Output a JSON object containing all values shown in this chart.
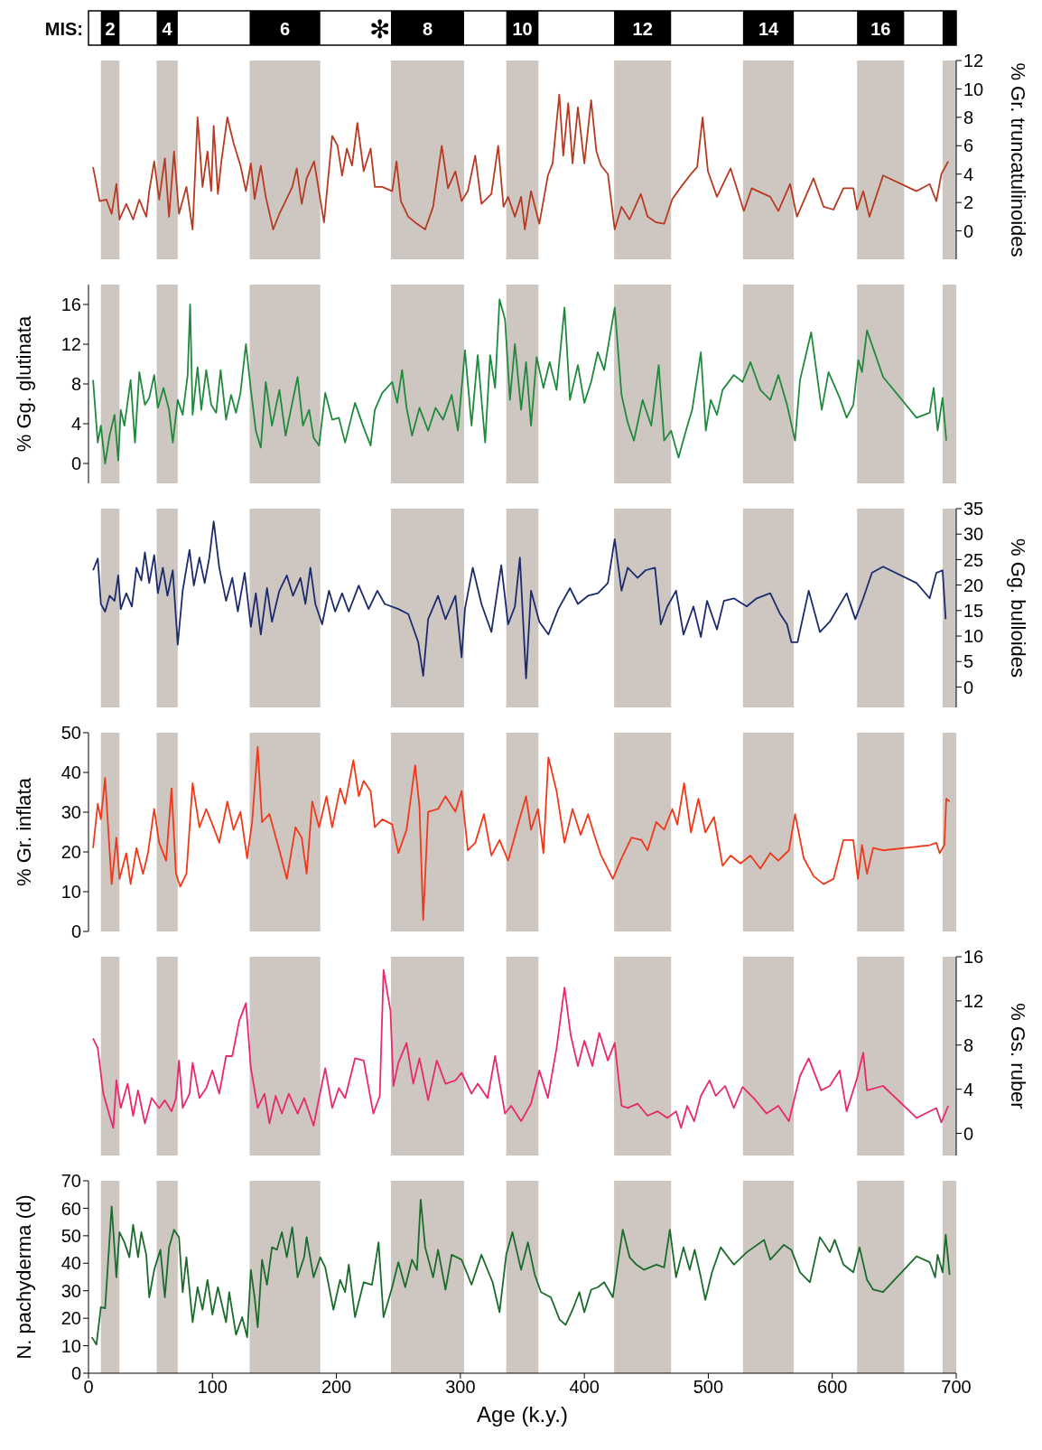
{
  "chart_data": [
    {
      "type": "line",
      "ylabel": "% Gr. truncatulinoides",
      "xlim": [
        0,
        700
      ],
      "ylim": [
        -2,
        12
      ],
      "yticks": [
        0,
        2,
        4,
        6,
        8,
        10,
        12
      ],
      "tick_labels": "y",
      "annotations": [
        "MIS:",
        "✻"
      ],
      "bands": [
        {
          "axis": "x",
          "from": 10,
          "to": 25,
          "label": "2",
          "color": "#cec7c1"
        },
        {
          "axis": "x",
          "from": 55,
          "to": 72,
          "label": "4",
          "color": "#cec7c1"
        },
        {
          "axis": "x",
          "from": 130,
          "to": 187,
          "label": "6",
          "color": "#cec7c1"
        },
        {
          "axis": "x",
          "from": 244,
          "to": 303,
          "label": "8",
          "color": "#cec7c1"
        },
        {
          "axis": "x",
          "from": 337,
          "to": 363,
          "label": "10",
          "color": "#cec7c1"
        },
        {
          "axis": "x",
          "from": 424,
          "to": 470,
          "label": "12",
          "color": "#cec7c1"
        },
        {
          "axis": "x",
          "from": 528,
          "to": 569,
          "label": "14",
          "color": "#cec7c1"
        },
        {
          "axis": "x",
          "from": 620,
          "to": 658,
          "label": "16",
          "color": "#cec7c1"
        },
        {
          "axis": "x",
          "from": 689,
          "to": 700,
          "label": null,
          "color": "#cec7c1"
        }
      ],
      "x": [
        3.7,
        9,
        14.5,
        18.7,
        22.5,
        25,
        30.5,
        36,
        41,
        46.6,
        49,
        53,
        57,
        61.6,
        65,
        69,
        73,
        79,
        84,
        88,
        92,
        96,
        99,
        101,
        104.4,
        107,
        112,
        117,
        122.6,
        127,
        131,
        134,
        139,
        143,
        149,
        154,
        159,
        164.4,
        168,
        172,
        176,
        182,
        190,
        196.6,
        200.9,
        204.6,
        208.4,
        212.6,
        216.9,
        222,
        227.6,
        231,
        237,
        245,
        248.5,
        252,
        258,
        263.5,
        271.6,
        278,
        285,
        290,
        296,
        301,
        306,
        312,
        317,
        325,
        330.5,
        334.8,
        338.5,
        344,
        349,
        352,
        357,
        363.7,
        370.6,
        374.4,
        379.8,
        383,
        387,
        390.5,
        394.8,
        400,
        405.5,
        409.7,
        413.5,
        419,
        424.5,
        430,
        436.5,
        445.6,
        451,
        458,
        464.4,
        471,
        478,
        486,
        491,
        495.4,
        499.7,
        507,
        518,
        528.7,
        535,
        550,
        556.5,
        566,
        571.5,
        584.9,
        593,
        601,
        609,
        617,
        620,
        625,
        630,
        641,
        668,
        678.6,
        684,
        688,
        693.6
      ],
      "series": [
        {
          "color": "#b83a22",
          "values": [
            4.5,
            2.1,
            2.2,
            1.2,
            3.3,
            0.8,
            1.9,
            0.8,
            2.2,
            1.0,
            2.8,
            4.9,
            2.2,
            5.1,
            1.0,
            5.6,
            1.2,
            3.1,
            0.1,
            8.0,
            3.1,
            5.6,
            2.8,
            7.4,
            2.6,
            4.75,
            8.0,
            6.2,
            4.6,
            2.8,
            4.75,
            2.25,
            4.6,
            2.4,
            0.1,
            1.2,
            2.1,
            3.1,
            4.4,
            1.9,
            3.7,
            4.9,
            0.6,
            6.7,
            6.0,
            3.9,
            5.8,
            4.6,
            7.6,
            4.2,
            5.8,
            3.1,
            3.1,
            2.8,
            4.9,
            2.1,
            1.0,
            0.6,
            0.1,
            1.7,
            6.0,
            3.0,
            4.2,
            2.1,
            2.8,
            5.3,
            1.9,
            2.6,
            6.0,
            1.7,
            2.4,
            1.0,
            2.4,
            0.1,
            2.8,
            0.5,
            3.9,
            4.75,
            9.6,
            5.3,
            9.0,
            4.75,
            8.7,
            4.75,
            9.2,
            5.6,
            4.6,
            4.0,
            0.1,
            1.7,
            0.8,
            2.6,
            1.0,
            0.6,
            0.5,
            2.25,
            3.1,
            4.0,
            4.5,
            8.0,
            4.2,
            2.4,
            4.4,
            1.4,
            3.0,
            2.4,
            1.4,
            3.3,
            1.0,
            3.7,
            1.7,
            1.5,
            3.0,
            3.0,
            1.5,
            2.8,
            1.0,
            3.9,
            2.8,
            3.3,
            2.1,
            4.0,
            4.9
          ]
        }
      ]
    },
    {
      "type": "line",
      "ylabel": "% Gg. glutinata",
      "xlim": [
        0,
        700
      ],
      "ylim": [
        -2,
        18
      ],
      "yticks": [
        0,
        4,
        8,
        12,
        16
      ],
      "tick_labels": "y",
      "bands": [
        {
          "axis": "x",
          "from": 10,
          "to": 25,
          "color": "#cec7c1"
        },
        {
          "axis": "x",
          "from": 55,
          "to": 72,
          "color": "#cec7c1"
        },
        {
          "axis": "x",
          "from": 130,
          "to": 187,
          "color": "#cec7c1"
        },
        {
          "axis": "x",
          "from": 244,
          "to": 303,
          "color": "#cec7c1"
        },
        {
          "axis": "x",
          "from": 337,
          "to": 363,
          "color": "#cec7c1"
        },
        {
          "axis": "x",
          "from": 424,
          "to": 470,
          "color": "#cec7c1"
        },
        {
          "axis": "x",
          "from": 528,
          "to": 569,
          "color": "#cec7c1"
        },
        {
          "axis": "x",
          "from": 620,
          "to": 658,
          "color": "#cec7c1"
        },
        {
          "axis": "x",
          "from": 689,
          "to": 700,
          "color": "#cec7c1"
        }
      ],
      "x": [
        3.7,
        7.5,
        10,
        13.4,
        17,
        21,
        24,
        26,
        29,
        34,
        37.5,
        41,
        45.5,
        49,
        53,
        56,
        60.5,
        65,
        68,
        72,
        76,
        80,
        82,
        84,
        88,
        91,
        95,
        99,
        103,
        106.6,
        111,
        115,
        119,
        122.6,
        127,
        131,
        135,
        139,
        143,
        148,
        154,
        159,
        164.4,
        168.7,
        173,
        178,
        181.6,
        186,
        191,
        196.6,
        202,
        207,
        215,
        222,
        227.6,
        231,
        237,
        245,
        249,
        253,
        256.6,
        261,
        267,
        274,
        280,
        286,
        293,
        298,
        303.7,
        309,
        314,
        320,
        324,
        328,
        331.6,
        336,
        340,
        344,
        349,
        353,
        357,
        361.5,
        367,
        372,
        377.6,
        384,
        388.4,
        394.8,
        400,
        405.5,
        410.8,
        416,
        424.5,
        430,
        435,
        440,
        447,
        454,
        460,
        464.4,
        470,
        476,
        481.5,
        487,
        494,
        498,
        502,
        507,
        511.5,
        520.6,
        527.6,
        534,
        542,
        550,
        556.5,
        563.5,
        570,
        574,
        583,
        591.5,
        597,
        606,
        611.6,
        617,
        621,
        624,
        628,
        641,
        668,
        678.6,
        681.8,
        685,
        689,
        692
      ],
      "series": [
        {
          "color": "#1f8a3c",
          "values": [
            8.4,
            2.1,
            3.8,
            0,
            2.8,
            4.9,
            0.3,
            5.4,
            3.8,
            8.4,
            2.1,
            9.2,
            5.9,
            6.6,
            8.9,
            5.6,
            7.6,
            5.4,
            2.1,
            6.4,
            4.9,
            8.9,
            16.0,
            4.9,
            9.7,
            5.4,
            9.4,
            5.9,
            5.1,
            9.4,
            4.4,
            6.9,
            5.1,
            7.1,
            12.0,
            7.4,
            3.3,
            1.6,
            8.2,
            3.8,
            7.4,
            2.8,
            6.1,
            8.7,
            3.8,
            5.4,
            2.6,
            1.8,
            7.1,
            4.4,
            4.6,
            2.1,
            6.1,
            3.6,
            1.8,
            5.4,
            7.1,
            8.2,
            6.1,
            9.4,
            5.6,
            2.8,
            5.6,
            3.3,
            5.6,
            4.4,
            6.9,
            3.3,
            11.4,
            3.8,
            10.9,
            2.1,
            10.9,
            7.6,
            16.5,
            14.5,
            6.4,
            12.0,
            5.4,
            10.2,
            3.8,
            10.7,
            7.6,
            10.2,
            7.4,
            15.7,
            6.4,
            9.9,
            6.1,
            8.2,
            11.2,
            9.4,
            15.7,
            6.9,
            4.1,
            2.3,
            6.4,
            3.8,
            9.9,
            2.3,
            3.3,
            0.6,
            3.1,
            5.4,
            11.2,
            3.3,
            6.4,
            4.9,
            7.4,
            8.9,
            8.2,
            10.2,
            7.4,
            6.4,
            8.9,
            5.9,
            2.3,
            8.4,
            13.2,
            5.4,
            9.2,
            6.6,
            4.6,
            5.9,
            10.4,
            9.2,
            13.4,
            8.7,
            4.6,
            5.1,
            7.6,
            3.3,
            6.6,
            2.3
          ]
        }
      ]
    },
    {
      "type": "line",
      "ylabel": "% Gg. bulloides",
      "xlim": [
        0,
        700
      ],
      "ylim": [
        -4,
        35
      ],
      "yticks": [
        0,
        5,
        10,
        15,
        20,
        25,
        30,
        35
      ],
      "tick_labels": "y",
      "bands": [
        {
          "axis": "x",
          "from": 10,
          "to": 25,
          "color": "#cec7c1"
        },
        {
          "axis": "x",
          "from": 55,
          "to": 72,
          "color": "#cec7c1"
        },
        {
          "axis": "x",
          "from": 130,
          "to": 187,
          "color": "#cec7c1"
        },
        {
          "axis": "x",
          "from": 244,
          "to": 303,
          "color": "#cec7c1"
        },
        {
          "axis": "x",
          "from": 337,
          "to": 363,
          "color": "#cec7c1"
        },
        {
          "axis": "x",
          "from": 424,
          "to": 470,
          "color": "#cec7c1"
        },
        {
          "axis": "x",
          "from": 528,
          "to": 569,
          "color": "#cec7c1"
        },
        {
          "axis": "x",
          "from": 620,
          "to": 658,
          "color": "#cec7c1"
        },
        {
          "axis": "x",
          "from": 689,
          "to": 700,
          "color": "#cec7c1"
        }
      ],
      "x": [
        3.7,
        7.5,
        10,
        13.4,
        17,
        21,
        24,
        26,
        30.5,
        35,
        38.7,
        42.6,
        45.5,
        49,
        53,
        56,
        60,
        63.7,
        68,
        72,
        76,
        81.5,
        85,
        89.5,
        93.7,
        97.5,
        101,
        105.5,
        111,
        116,
        120.5,
        126,
        131,
        135,
        139,
        144,
        148,
        154,
        160,
        165,
        171,
        175,
        179,
        183,
        188.5,
        194,
        199,
        204.6,
        210,
        218,
        226,
        233,
        239,
        250,
        258,
        266,
        270,
        274,
        282,
        288,
        296,
        301,
        303.7,
        310,
        317,
        325,
        333,
        338.5,
        344,
        348,
        353,
        357,
        363.7,
        371,
        379,
        388.4,
        394.8,
        403,
        411,
        419,
        424.5,
        430,
        435,
        443,
        449.4,
        457,
        461.7,
        467,
        474,
        480,
        488,
        494,
        499,
        507,
        512.6,
        520.6,
        531,
        539,
        550,
        558,
        563.5,
        567,
        572,
        581,
        590,
        598,
        611.6,
        618.6,
        625,
        632,
        641,
        668,
        678.6,
        684,
        689,
        691.5
      ],
      "series": [
        {
          "color": "#1c2b6e",
          "values": [
            22.9,
            25.2,
            16.3,
            14.8,
            17.9,
            16.9,
            21.9,
            15.3,
            18.4,
            15.8,
            23.4,
            20.9,
            26.4,
            20.4,
            25.9,
            18.4,
            23.4,
            17.9,
            22.9,
            8.3,
            18.9,
            26.9,
            19.9,
            25.4,
            20.4,
            25.4,
            32.5,
            23.4,
            16.9,
            21.4,
            14.8,
            22.4,
            11.8,
            18.4,
            10.3,
            19.4,
            12.8,
            18.9,
            21.9,
            17.9,
            21.4,
            16.3,
            23.4,
            16.3,
            12.3,
            18.9,
            14.8,
            18.4,
            14.8,
            19.9,
            15.3,
            18.9,
            16.3,
            15.3,
            14.3,
            8.8,
            2.2,
            13.3,
            17.9,
            13.3,
            17.9,
            5.8,
            15.3,
            23.4,
            16.3,
            10.8,
            23.9,
            12.3,
            15.8,
            25.4,
            1.7,
            18.9,
            12.8,
            10.3,
            15.3,
            19.4,
            16.3,
            17.9,
            18.4,
            20.4,
            29.0,
            18.9,
            23.4,
            21.4,
            22.9,
            23.4,
            12.3,
            15.8,
            18.9,
            10.3,
            15.8,
            9.8,
            16.9,
            11.3,
            16.9,
            17.4,
            15.8,
            17.4,
            18.4,
            14.3,
            12.3,
            8.8,
            8.8,
            18.9,
            10.8,
            12.8,
            18.4,
            13.3,
            17.4,
            22.4,
            23.6,
            20.4,
            17.4,
            22.4,
            22.9,
            13.3
          ]
        }
      ]
    },
    {
      "type": "line",
      "ylabel": "% Gr. inflata",
      "xlim": [
        0,
        700
      ],
      "ylim": [
        0,
        50
      ],
      "yticks": [
        0,
        10,
        20,
        30,
        40,
        50
      ],
      "tick_labels": "y",
      "bands": [
        {
          "axis": "x",
          "from": 10,
          "to": 25,
          "color": "#cec7c1"
        },
        {
          "axis": "x",
          "from": 55,
          "to": 72,
          "color": "#cec7c1"
        },
        {
          "axis": "x",
          "from": 130,
          "to": 187,
          "color": "#cec7c1"
        },
        {
          "axis": "x",
          "from": 244,
          "to": 303,
          "color": "#cec7c1"
        },
        {
          "axis": "x",
          "from": 337,
          "to": 363,
          "color": "#cec7c1"
        },
        {
          "axis": "x",
          "from": 424,
          "to": 470,
          "color": "#cec7c1"
        },
        {
          "axis": "x",
          "from": 528,
          "to": 569,
          "color": "#cec7c1"
        },
        {
          "axis": "x",
          "from": 620,
          "to": 658,
          "color": "#cec7c1"
        },
        {
          "axis": "x",
          "from": 689,
          "to": 700,
          "color": "#cec7c1"
        }
      ],
      "x": [
        3.7,
        7.5,
        10,
        13.4,
        18.7,
        22.5,
        25,
        30.5,
        34,
        38.7,
        44,
        48,
        53,
        57,
        62.6,
        67,
        70.6,
        74,
        79,
        84,
        89.5,
        95,
        100,
        105.5,
        112,
        117,
        122.6,
        128,
        132,
        136.5,
        140,
        146,
        154,
        160,
        167,
        172,
        176,
        180.5,
        186,
        192,
        196.6,
        203,
        207,
        213.7,
        218,
        222,
        227.6,
        231,
        237,
        245,
        250,
        256.6,
        263.5,
        267,
        270,
        274,
        282,
        288,
        296,
        301,
        306,
        312,
        319,
        325,
        331.6,
        338.5,
        346.5,
        353,
        357,
        362.6,
        367,
        371,
        377.6,
        384,
        390.5,
        397,
        403,
        408,
        413.5,
        423,
        430,
        438,
        446,
        451,
        458,
        464.4,
        471,
        475,
        480.5,
        486,
        492,
        497.6,
        504.6,
        511.5,
        518,
        526,
        534,
        542,
        550,
        556.5,
        565,
        570,
        577,
        585,
        593,
        601,
        609,
        617,
        620.7,
        624,
        628,
        633,
        641,
        678.6,
        684,
        686.6,
        690.4,
        692,
        694.7
      ],
      "series": [
        {
          "color": "#f0391a",
          "values": [
            21.0,
            32.1,
            28.2,
            38.6,
            11.9,
            23.6,
            13.2,
            19.7,
            11.9,
            21.0,
            14.5,
            19.7,
            30.8,
            22.3,
            17.8,
            36.0,
            14.5,
            11.3,
            14.5,
            37.3,
            26.2,
            30.8,
            26.9,
            22.3,
            32.7,
            25.6,
            30.1,
            18.4,
            27.5,
            46.4,
            27.5,
            29.5,
            20.4,
            13.2,
            26.2,
            23.6,
            14.5,
            32.7,
            26.2,
            34.0,
            26.2,
            36.0,
            32.1,
            43.1,
            34.0,
            37.9,
            35.3,
            26.2,
            28.2,
            26.9,
            19.7,
            25.6,
            41.8,
            31.4,
            2.9,
            30.1,
            30.8,
            34.0,
            30.1,
            35.3,
            20.4,
            22.3,
            29.5,
            19.1,
            23.0,
            17.8,
            26.9,
            34.0,
            25.6,
            30.8,
            19.7,
            43.8,
            35.3,
            22.3,
            30.8,
            24.3,
            29.5,
            24.3,
            19.1,
            13.2,
            18.4,
            23.6,
            23.0,
            20.4,
            27.5,
            25.6,
            30.8,
            26.9,
            37.3,
            24.9,
            33.4,
            24.9,
            28.8,
            16.5,
            19.1,
            17.1,
            19.1,
            15.8,
            19.7,
            17.8,
            20.4,
            29.5,
            18.4,
            13.9,
            11.9,
            13.2,
            23.0,
            23.0,
            13.2,
            21.7,
            14.5,
            21.0,
            20.4,
            21.7,
            22.3,
            19.7,
            21.7,
            33.4,
            32.7
          ]
        }
      ]
    },
    {
      "type": "line",
      "ylabel": "% Gs. ruber",
      "xlim": [
        0,
        700
      ],
      "ylim": [
        -2,
        16
      ],
      "yticks": [
        0,
        4,
        8,
        12,
        16
      ],
      "tick_labels": "y",
      "bands": [
        {
          "axis": "x",
          "from": 10,
          "to": 25,
          "color": "#cec7c1"
        },
        {
          "axis": "x",
          "from": 55,
          "to": 72,
          "color": "#cec7c1"
        },
        {
          "axis": "x",
          "from": 130,
          "to": 187,
          "color": "#cec7c1"
        },
        {
          "axis": "x",
          "from": 244,
          "to": 303,
          "color": "#cec7c1"
        },
        {
          "axis": "x",
          "from": 337,
          "to": 363,
          "color": "#cec7c1"
        },
        {
          "axis": "x",
          "from": 424,
          "to": 470,
          "color": "#cec7c1"
        },
        {
          "axis": "x",
          "from": 528,
          "to": 569,
          "color": "#cec7c1"
        },
        {
          "axis": "x",
          "from": 620,
          "to": 658,
          "color": "#cec7c1"
        },
        {
          "axis": "x",
          "from": 689,
          "to": 700,
          "color": "#cec7c1"
        }
      ],
      "x": [
        3.7,
        7.5,
        12,
        17,
        20,
        22.5,
        26,
        31.6,
        36,
        40,
        45.5,
        51,
        57,
        61.6,
        67,
        70.6,
        73,
        76,
        81.5,
        84,
        89.5,
        95,
        100,
        105.5,
        111,
        116,
        121.6,
        127,
        131,
        136.5,
        142,
        146,
        151,
        156,
        161.6,
        168.7,
        174,
        181.6,
        186,
        191,
        196.6,
        202,
        207,
        215,
        222,
        229.8,
        235,
        238,
        243.6,
        246,
        250,
        256.6,
        262,
        267,
        274,
        281,
        288,
        296,
        301,
        309,
        314,
        322,
        328,
        336,
        341,
        349,
        357,
        363.7,
        370.6,
        377.6,
        384,
        389,
        394.8,
        400,
        406.5,
        412,
        419,
        424.5,
        430,
        435,
        443,
        451,
        459,
        467,
        474,
        478,
        483,
        488.6,
        494,
        501,
        506,
        513.6,
        520.6,
        527.6,
        536.6,
        547,
        556.5,
        565,
        574,
        581,
        591,
        598,
        606,
        611.6,
        620,
        625,
        628,
        641,
        668,
        684,
        688,
        693.6
      ],
      "series": [
        {
          "color": "#e8296c",
          "values": [
            8.6,
            7.7,
            3.6,
            1.6,
            0.5,
            4.8,
            2.3,
            4.5,
            1.6,
            3.9,
            0.9,
            3.2,
            2.3,
            3.0,
            2.0,
            3.2,
            6.6,
            2.3,
            3.6,
            6.4,
            3.2,
            4.1,
            5.7,
            3.6,
            7.0,
            7.0,
            10.2,
            11.8,
            5.9,
            2.3,
            3.6,
            0.9,
            3.4,
            1.8,
            3.6,
            1.8,
            3.2,
            0.7,
            3.2,
            5.9,
            2.3,
            4.1,
            3.2,
            6.8,
            6.6,
            1.8,
            3.4,
            14.8,
            11.1,
            4.3,
            6.4,
            8.2,
            4.5,
            6.8,
            3.0,
            6.6,
            4.5,
            4.8,
            5.5,
            3.6,
            4.5,
            3.2,
            7.0,
            1.8,
            2.5,
            1.1,
            2.7,
            5.7,
            3.2,
            7.7,
            13.2,
            8.9,
            6.1,
            8.4,
            6.1,
            9.1,
            6.6,
            8.2,
            2.5,
            2.3,
            2.7,
            1.6,
            2.0,
            1.4,
            2.0,
            0.5,
            2.5,
            1.1,
            3.4,
            4.8,
            3.4,
            4.3,
            2.3,
            4.2,
            3.2,
            1.8,
            2.5,
            1.1,
            5.2,
            6.8,
            3.9,
            4.3,
            5.7,
            2.0,
            5.0,
            7.3,
            3.9,
            4.3,
            1.4,
            2.3,
            1.0,
            2.5
          ]
        }
      ]
    },
    {
      "type": "line",
      "ylabel": "N. pachyderma (d)",
      "xlabel": "Age (k.y.)",
      "xlim": [
        0,
        700
      ],
      "xticks": [
        0,
        100,
        200,
        300,
        400,
        500,
        600,
        700
      ],
      "ylim": [
        0,
        70
      ],
      "yticks": [
        0,
        10,
        20,
        30,
        40,
        50,
        60,
        70
      ],
      "bands": [
        {
          "axis": "x",
          "from": 10,
          "to": 25,
          "color": "#cec7c1"
        },
        {
          "axis": "x",
          "from": 55,
          "to": 72,
          "color": "#cec7c1"
        },
        {
          "axis": "x",
          "from": 130,
          "to": 187,
          "color": "#cec7c1"
        },
        {
          "axis": "x",
          "from": 244,
          "to": 303,
          "color": "#cec7c1"
        },
        {
          "axis": "x",
          "from": 337,
          "to": 363,
          "color": "#cec7c1"
        },
        {
          "axis": "x",
          "from": 424,
          "to": 470,
          "color": "#cec7c1"
        },
        {
          "axis": "x",
          "from": 528,
          "to": 569,
          "color": "#cec7c1"
        },
        {
          "axis": "x",
          "from": 620,
          "to": 658,
          "color": "#cec7c1"
        },
        {
          "axis": "x",
          "from": 689,
          "to": 700,
          "color": "#cec7c1"
        }
      ],
      "x": [
        2.7,
        6.4,
        10,
        13.4,
        18.7,
        22.5,
        25,
        29,
        33,
        36,
        40,
        42.6,
        46.6,
        49,
        53,
        58,
        61.6,
        65,
        69,
        73,
        76,
        79,
        84,
        88,
        92,
        96,
        100,
        104.4,
        111,
        113.5,
        119,
        124,
        128,
        131,
        134,
        136.5,
        140,
        144,
        148,
        152,
        156,
        160,
        164.4,
        168.7,
        174,
        176,
        181.6,
        187,
        191,
        197.6,
        203,
        207,
        210,
        215,
        222,
        228.7,
        234,
        238,
        245,
        250,
        255.5,
        261,
        265,
        268,
        271.6,
        278,
        282,
        288,
        293,
        301,
        309,
        317,
        326,
        331.6,
        337,
        342,
        349,
        354.5,
        360,
        365,
        373,
        380,
        385,
        390.5,
        396,
        400,
        405.5,
        411,
        416,
        423,
        428,
        431,
        436.5,
        442,
        448,
        458,
        464.4,
        469,
        474,
        480,
        485,
        489,
        494,
        497.6,
        503,
        510,
        520.6,
        531,
        545,
        550,
        561,
        567,
        574,
        582,
        590,
        598,
        602,
        609,
        617,
        622,
        628,
        633,
        641,
        668,
        678.6,
        683,
        685,
        689,
        691.5,
        694.7
      ],
      "series": [
        {
          "color": "#1b6b2c",
          "values": [
            13.1,
            10.4,
            24.0,
            23.6,
            60.7,
            34.9,
            51.3,
            47.6,
            42.2,
            54.0,
            42.2,
            51.3,
            43.1,
            27.6,
            37.6,
            44.9,
            27.6,
            45.8,
            52.2,
            49.5,
            29.5,
            42.2,
            18.5,
            31.3,
            23.1,
            34.0,
            21.3,
            31.3,
            18.5,
            29.5,
            14.0,
            20.4,
            13.1,
            37.6,
            27.6,
            16.7,
            41.3,
            32.2,
            45.8,
            44.9,
            51.3,
            42.2,
            53.1,
            34.9,
            42.2,
            49.5,
            34.9,
            42.2,
            38.5,
            23.1,
            34.0,
            29.5,
            39.5,
            20.4,
            33.1,
            32.2,
            47.6,
            20.4,
            31.3,
            40.4,
            31.3,
            41.3,
            37.6,
            63.1,
            45.8,
            34.9,
            44.9,
            30.4,
            43.1,
            41.3,
            32.2,
            43.1,
            33.1,
            22.2,
            43.1,
            51.3,
            37.6,
            47.6,
            35.8,
            29.5,
            27.6,
            19.5,
            17.6,
            23.1,
            29.5,
            22.2,
            30.4,
            31.3,
            33.1,
            27.6,
            43.1,
            52.2,
            42.2,
            39.5,
            37.6,
            39.5,
            38.5,
            52.2,
            34.9,
            45.8,
            37.6,
            44.9,
            34.9,
            26.7,
            36.7,
            45.8,
            39.5,
            44.0,
            48.5,
            41.3,
            46.7,
            44.9,
            36.7,
            33.1,
            49.5,
            44.0,
            48.5,
            39.5,
            36.7,
            45.8,
            34.0,
            30.4,
            29.5,
            42.5,
            40.4,
            34.9,
            43.1,
            36.7,
            50.4,
            35.8
          ]
        }
      ]
    }
  ]
}
